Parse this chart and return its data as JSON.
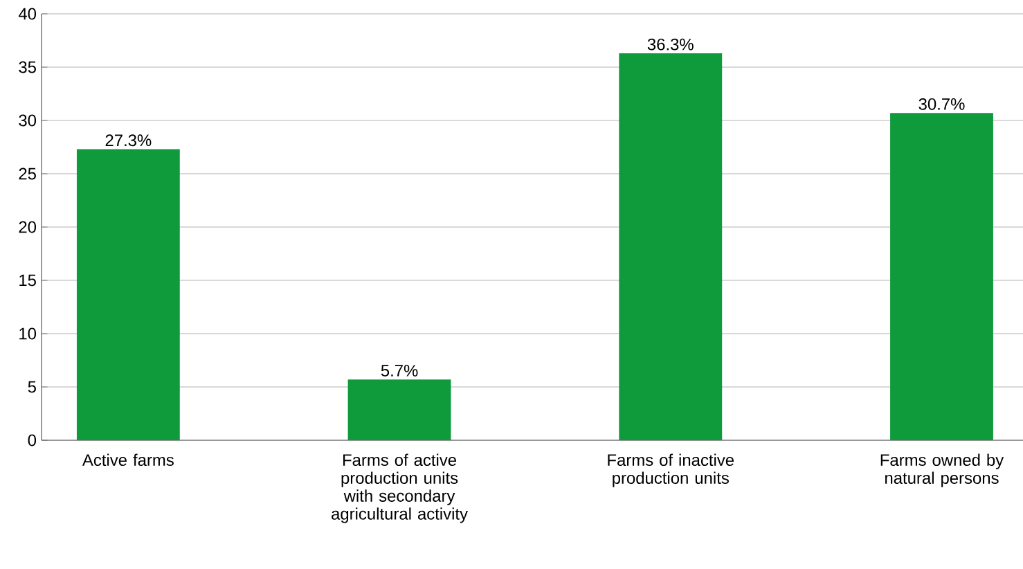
{
  "chart_data": {
    "type": "bar",
    "categories": [
      "Active farms",
      "Farms of active production units with secondary agricultural activity",
      "Farms of inactive production units",
      "Farms owned by natural persons"
    ],
    "values": [
      27.3,
      5.7,
      36.3,
      30.7
    ],
    "value_labels": [
      "27.3%",
      "5.7%",
      "36.3%",
      "30.7%"
    ],
    "color": "#0f9a3c",
    "ylim": [
      0,
      40
    ],
    "yticks": [
      0,
      5,
      10,
      15,
      20,
      25,
      30,
      35,
      40
    ],
    "grid": "y"
  }
}
